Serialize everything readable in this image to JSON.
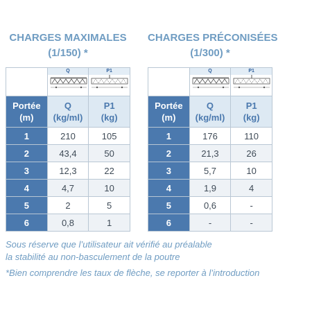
{
  "tables": [
    {
      "title": "CHARGES MAXIMALES",
      "subtitle": "(1/150) *",
      "icon_labels": [
        "Q",
        "P1"
      ],
      "header": [
        [
          "Portée",
          "(m)"
        ],
        [
          "Q",
          "(kg/ml)"
        ],
        [
          "P1",
          "(kg)"
        ]
      ],
      "rows": [
        [
          "1",
          "210",
          "105"
        ],
        [
          "2",
          "43,4",
          "50"
        ],
        [
          "3",
          "12,3",
          "22"
        ],
        [
          "4",
          "4,7",
          "10"
        ],
        [
          "5",
          "2",
          "5"
        ],
        [
          "6",
          "0,8",
          "1"
        ]
      ]
    },
    {
      "title": "CHARGES PRÉCONISÉES",
      "subtitle": "(1/300) *",
      "icon_labels": [
        "Q",
        "P1"
      ],
      "header": [
        [
          "Portée",
          "(m)"
        ],
        [
          "Q",
          "(kg/ml)"
        ],
        [
          "P1",
          "(kg)"
        ]
      ],
      "rows": [
        [
          "1",
          "176",
          "110"
        ],
        [
          "2",
          "21,3",
          "26"
        ],
        [
          "3",
          "5,7",
          "10"
        ],
        [
          "4",
          "1,9",
          "4"
        ],
        [
          "5",
          "0,6",
          "-"
        ],
        [
          "6",
          "-",
          "-"
        ]
      ]
    }
  ],
  "notes": [
    "Sous réserve que l’utilisateur ait vérifié au préalable",
    "la stabilité au non-basculement de la poutre",
    "*Bien comprendre les taux de flèche, se reporter à l’introduction"
  ]
}
